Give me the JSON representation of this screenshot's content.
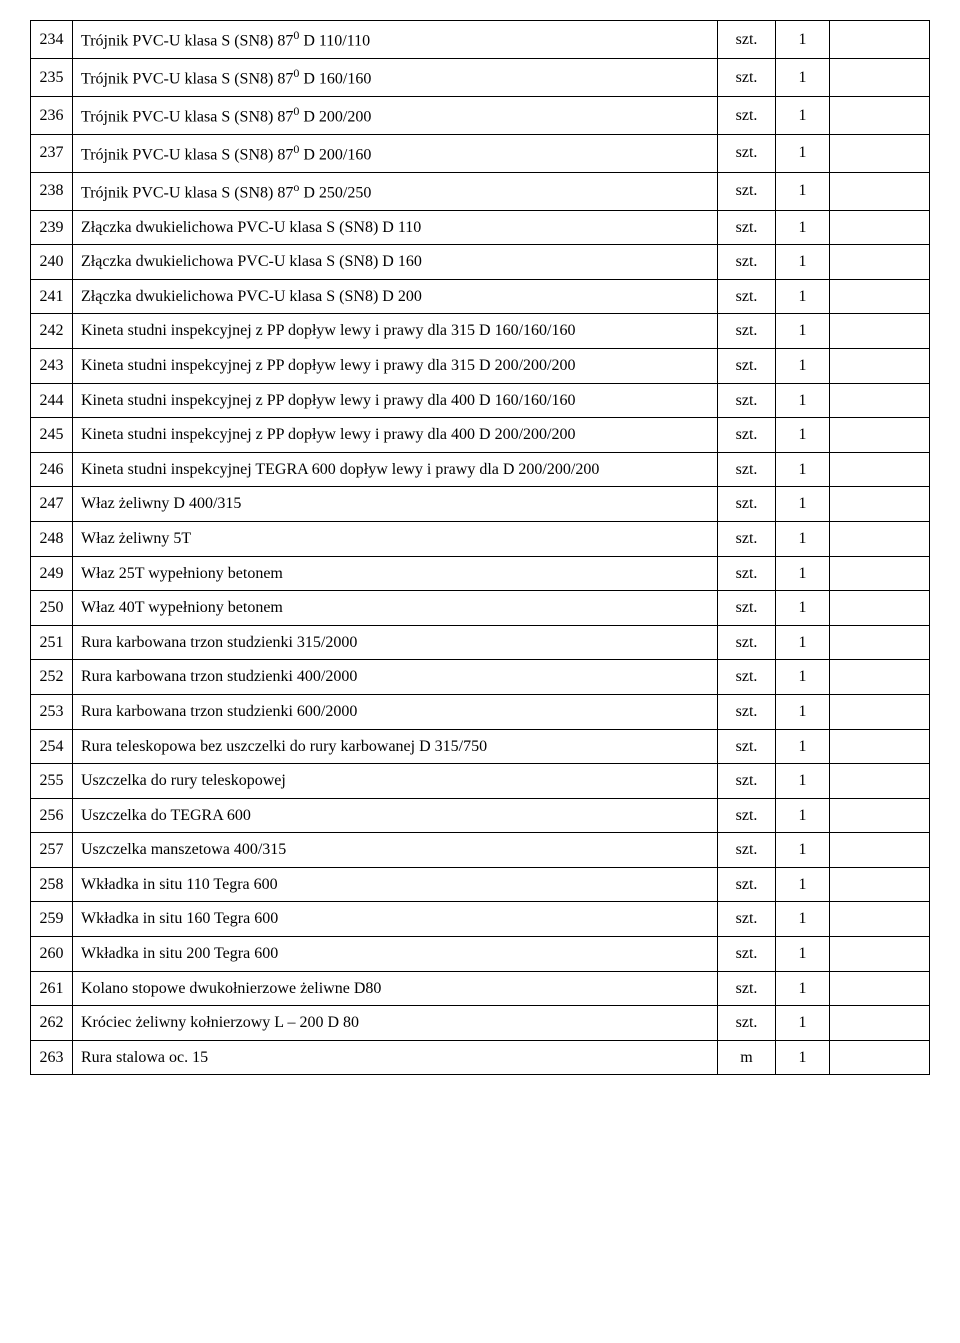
{
  "table": {
    "unit_szt": "szt.",
    "unit_m": "m",
    "qty_default": "1",
    "rows": [
      {
        "n": "234",
        "desc_html": "Trójnik PVC-U klasa S (SN8) 87<sup>0</sup> D 110/110",
        "unit": "szt.",
        "qty": "1"
      },
      {
        "n": "235",
        "desc_html": "Trójnik PVC-U klasa S (SN8) 87<sup>0</sup> D 160/160",
        "unit": "szt.",
        "qty": "1"
      },
      {
        "n": "236",
        "desc_html": "Trójnik PVC-U klasa S (SN8) 87<sup>0</sup> D 200/200",
        "unit": "szt.",
        "qty": "1"
      },
      {
        "n": "237",
        "desc_html": "Trójnik PVC-U klasa S (SN8) 87<sup>0</sup> D 200/160",
        "unit": "szt.",
        "qty": "1"
      },
      {
        "n": "238",
        "desc_html": "Trójnik PVC-U klasa S (SN8) 87<sup>o</sup> D 250/250",
        "unit": "szt.",
        "qty": "1"
      },
      {
        "n": "239",
        "desc_html": "Złączka dwukielichowa PVC-U klasa S (SN8) D 110",
        "unit": "szt.",
        "qty": "1"
      },
      {
        "n": "240",
        "desc_html": "Złączka dwukielichowa PVC-U klasa S (SN8) D 160",
        "unit": "szt.",
        "qty": "1"
      },
      {
        "n": "241",
        "desc_html": "Złączka dwukielichowa PVC-U klasa S (SN8) D 200",
        "unit": "szt.",
        "qty": "1"
      },
      {
        "n": "242",
        "desc_html": "Kineta studni inspekcyjnej z PP dopływ lewy i prawy dla 315 D 160/160/160",
        "unit": "szt.",
        "qty": "1"
      },
      {
        "n": "243",
        "desc_html": "Kineta studni inspekcyjnej z PP dopływ lewy i prawy dla 315 D 200/200/200",
        "unit": "szt.",
        "qty": "1"
      },
      {
        "n": "244",
        "desc_html": "Kineta studni inspekcyjnej z PP dopływ lewy i prawy dla 400 D 160/160/160",
        "unit": "szt.",
        "qty": "1"
      },
      {
        "n": "245",
        "desc_html": "Kineta studni inspekcyjnej z PP dopływ lewy i prawy dla 400 D 200/200/200",
        "unit": "szt.",
        "qty": "1"
      },
      {
        "n": "246",
        "desc_html": "Kineta studni inspekcyjnej TEGRA 600 dopływ lewy i prawy dla D 200/200/200",
        "unit": "szt.",
        "qty": "1"
      },
      {
        "n": "247",
        "desc_html": "Właz żeliwny D 400/315",
        "unit": "szt.",
        "qty": "1"
      },
      {
        "n": "248",
        "desc_html": "Właz żeliwny 5T",
        "unit": "szt.",
        "qty": "1"
      },
      {
        "n": "249",
        "desc_html": "Właz  25T wypełniony betonem",
        "unit": "szt.",
        "qty": "1"
      },
      {
        "n": "250",
        "desc_html": "Właz  40T wypełniony betonem",
        "unit": "szt.",
        "qty": "1"
      },
      {
        "n": "251",
        "desc_html": "Rura karbowana trzon studzienki 315/2000",
        "unit": "szt.",
        "qty": "1"
      },
      {
        "n": "252",
        "desc_html": "Rura karbowana trzon studzienki 400/2000",
        "unit": "szt.",
        "qty": "1"
      },
      {
        "n": "253",
        "desc_html": "Rura karbowana trzon studzienki 600/2000",
        "unit": "szt.",
        "qty": "1"
      },
      {
        "n": "254",
        "desc_html": "Rura teleskopowa bez uszczelki do rury karbowanej D 315/750",
        "unit": "szt.",
        "qty": "1"
      },
      {
        "n": "255",
        "desc_html": "Uszczelka do rury teleskopowej",
        "unit": "szt.",
        "qty": "1"
      },
      {
        "n": "256",
        "desc_html": "Uszczelka do TEGRA 600",
        "unit": "szt.",
        "qty": "1"
      },
      {
        "n": "257",
        "desc_html": "Uszczelka manszetowa 400/315",
        "unit": "szt.",
        "qty": "1"
      },
      {
        "n": "258",
        "desc_html": "Wkładka in situ 110 Tegra 600",
        "unit": "szt.",
        "qty": "1"
      },
      {
        "n": "259",
        "desc_html": "Wkładka in situ 160 Tegra 600",
        "unit": "szt.",
        "qty": "1"
      },
      {
        "n": "260",
        "desc_html": "Wkładka in situ 200 Tegra 600",
        "unit": "szt.",
        "qty": "1"
      },
      {
        "n": "261",
        "desc_html": "Kolano stopowe dwukołnierzowe żeliwne D80",
        "unit": "szt.",
        "qty": "1"
      },
      {
        "n": "262",
        "desc_html": "Króciec żeliwny kołnierzowy L – 200 D 80",
        "unit": "szt.",
        "qty": "1"
      },
      {
        "n": "263",
        "desc_html": "Rura stalowa oc. 15",
        "unit": "m",
        "qty": "1"
      }
    ]
  }
}
